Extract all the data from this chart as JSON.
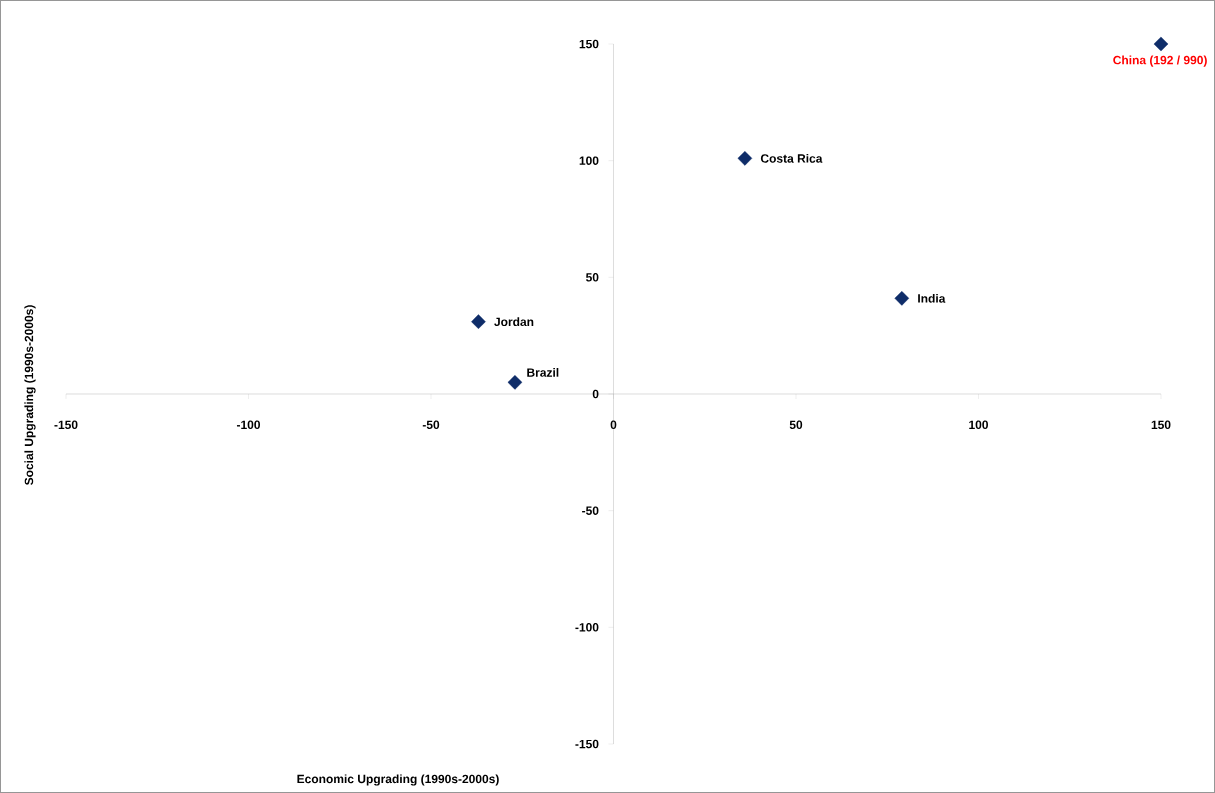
{
  "chart_data": {
    "type": "scatter",
    "xlabel": "Economic Upgrading (1990s-2000s)",
    "ylabel": "Social Upgrading (1990s-2000s)",
    "x": [
      150,
      36,
      79,
      -37,
      -27
    ],
    "series": [
      {
        "color": "#0f2d69",
        "values": [
          150,
          101,
          41,
          31,
          5
        ]
      }
    ],
    "marker": "diamond",
    "xlim": [
      -150,
      150
    ],
    "ylim": [
      -150,
      150
    ],
    "xticks": [
      -150,
      -100,
      -50,
      0,
      50,
      100,
      150
    ],
    "yticks": [
      -150,
      -100,
      -50,
      0,
      50,
      100,
      150
    ],
    "grid": false,
    "annotations": [
      {
        "text": "China (192 / 990)",
        "x": 150,
        "y": 150
      },
      {
        "text": "Costa Rica",
        "x": 36,
        "y": 101
      },
      {
        "text": "India",
        "x": 79,
        "y": 41
      },
      {
        "text": "Jordan",
        "x": -37,
        "y": 31
      },
      {
        "text": "Brazil",
        "x": -27,
        "y": 5
      }
    ]
  }
}
